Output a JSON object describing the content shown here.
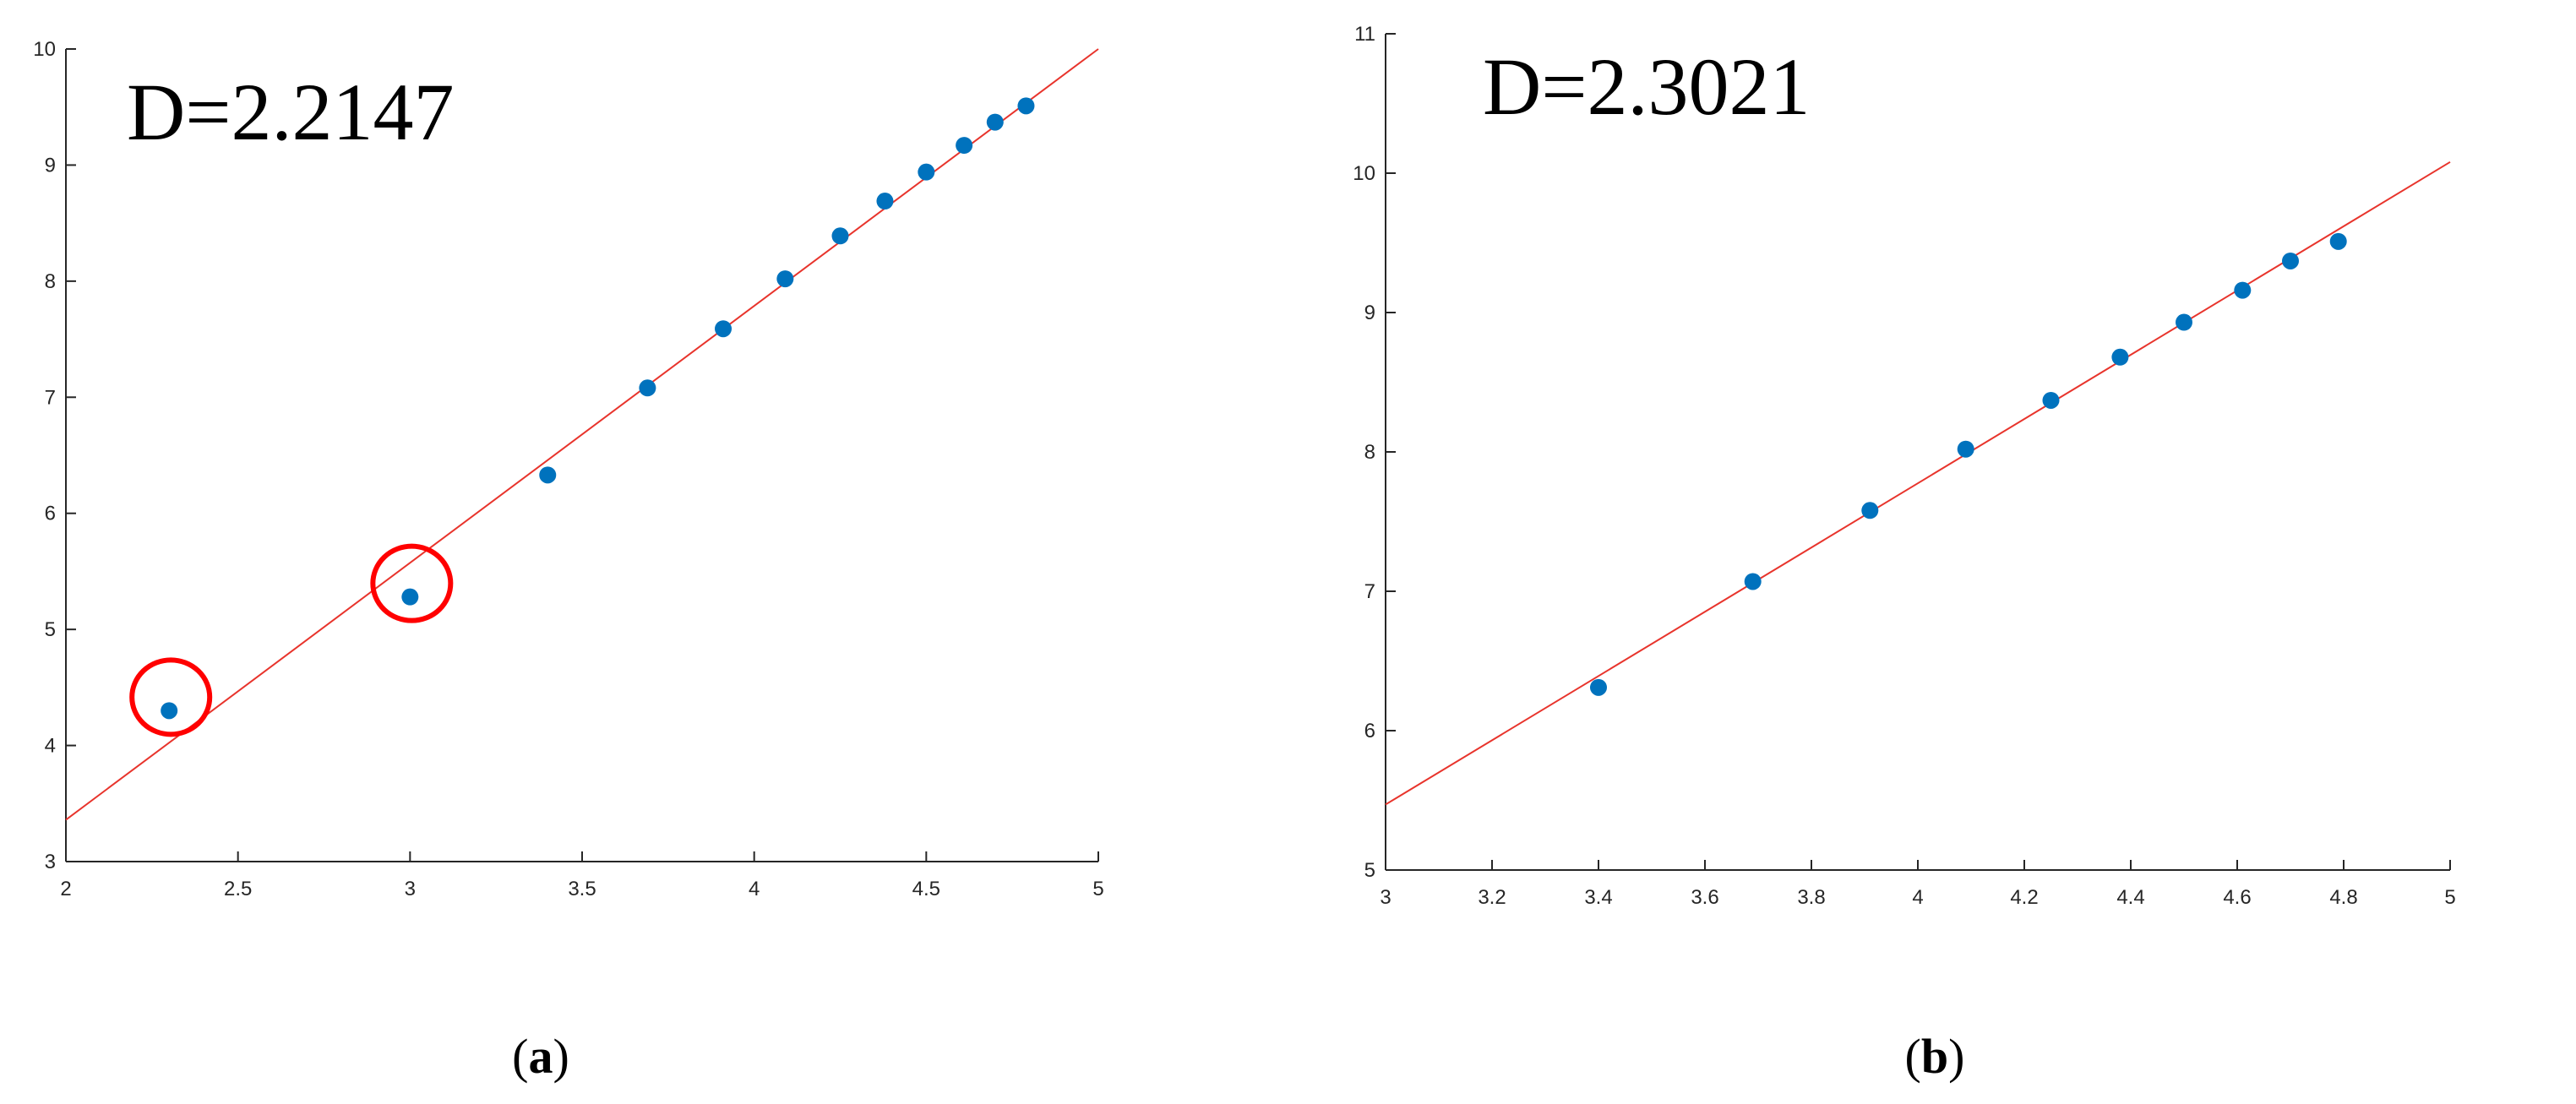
{
  "chart_data": [
    {
      "type": "scatter",
      "panel_label": "a",
      "annotation": "D=2.2147",
      "xlim": [
        2,
        5
      ],
      "ylim": [
        3,
        10
      ],
      "xticks": [
        2,
        2.5,
        3,
        3.5,
        4,
        4.5,
        5
      ],
      "xtick_labels": [
        "2",
        "2.5",
        "3",
        "3.5",
        "4",
        "4.5",
        "5"
      ],
      "yticks": [
        3,
        4,
        5,
        6,
        7,
        8,
        9,
        10
      ],
      "ytick_labels": [
        "3",
        "4",
        "5",
        "6",
        "7",
        "8",
        "9",
        "10"
      ],
      "grid": false,
      "points": [
        {
          "x": 2.3,
          "y": 4.3
        },
        {
          "x": 3.0,
          "y": 5.28
        },
        {
          "x": 3.4,
          "y": 6.33
        },
        {
          "x": 3.69,
          "y": 7.08
        },
        {
          "x": 3.91,
          "y": 7.59
        },
        {
          "x": 4.09,
          "y": 8.02
        },
        {
          "x": 4.25,
          "y": 8.39
        },
        {
          "x": 4.38,
          "y": 8.69
        },
        {
          "x": 4.5,
          "y": 8.94
        },
        {
          "x": 4.61,
          "y": 9.17
        },
        {
          "x": 4.7,
          "y": 9.37
        },
        {
          "x": 4.79,
          "y": 9.51
        }
      ],
      "fit_line": {
        "x": [
          2,
          5
        ],
        "y": [
          3.36,
          10.0
        ]
      },
      "highlighted_points": [
        0,
        1
      ],
      "colors": {
        "points": "#0072bd",
        "fit": "#e8342c",
        "highlight": "#ff0000"
      }
    },
    {
      "type": "scatter",
      "panel_label": "b",
      "annotation": "D=2.3021",
      "xlim": [
        3,
        5
      ],
      "ylim": [
        5,
        11
      ],
      "xticks": [
        3,
        3.2,
        3.4,
        3.6,
        3.8,
        4,
        4.2,
        4.4,
        4.6,
        4.8,
        5
      ],
      "xtick_labels": [
        "3",
        "3.2",
        "3.4",
        "3.6",
        "3.8",
        "4",
        "4.2",
        "4.4",
        "4.6",
        "4.8",
        "5"
      ],
      "yticks": [
        5,
        6,
        7,
        8,
        9,
        10,
        11
      ],
      "ytick_labels": [
        "5",
        "6",
        "7",
        "8",
        "9",
        "10",
        "11"
      ],
      "grid": false,
      "points": [
        {
          "x": 3.4,
          "y": 6.31
        },
        {
          "x": 3.69,
          "y": 7.07
        },
        {
          "x": 3.91,
          "y": 7.58
        },
        {
          "x": 4.09,
          "y": 8.02
        },
        {
          "x": 4.25,
          "y": 8.37
        },
        {
          "x": 4.38,
          "y": 8.68
        },
        {
          "x": 4.5,
          "y": 8.93
        },
        {
          "x": 4.61,
          "y": 9.16
        },
        {
          "x": 4.7,
          "y": 9.37
        },
        {
          "x": 4.79,
          "y": 9.51
        }
      ],
      "fit_line": {
        "x": [
          3,
          5
        ],
        "y": [
          5.47,
          10.08
        ]
      },
      "highlighted_points": [],
      "colors": {
        "points": "#0072bd",
        "fit": "#e8342c",
        "highlight": "#ff0000"
      }
    }
  ]
}
